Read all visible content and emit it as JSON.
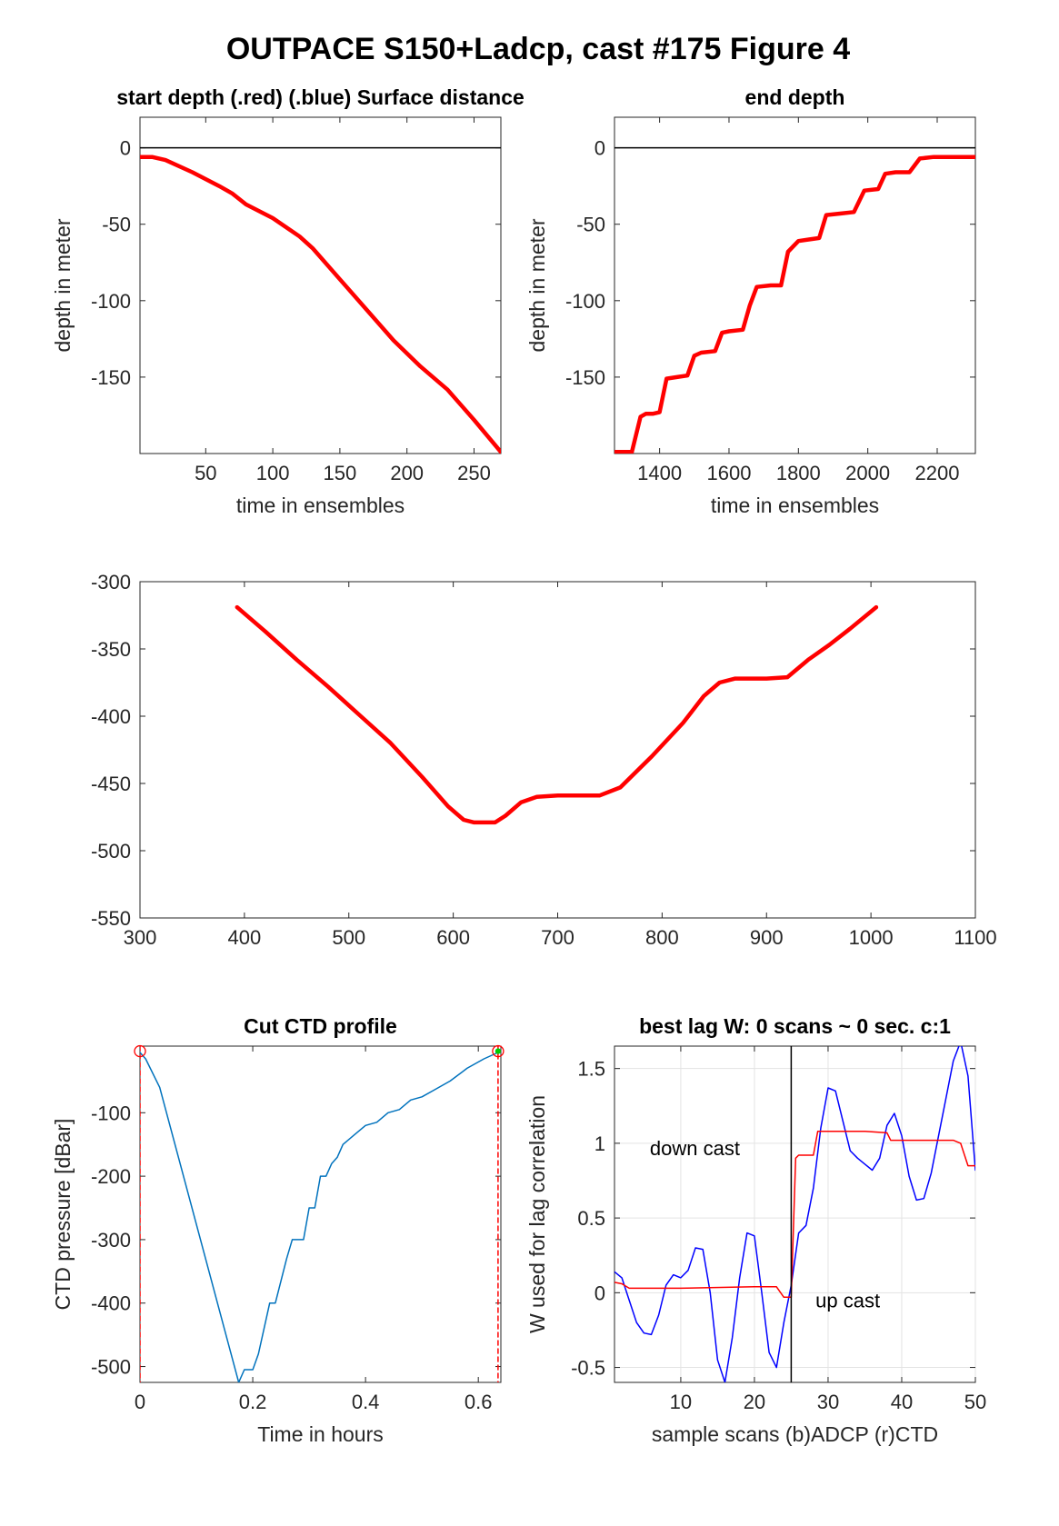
{
  "figure": {
    "title": "OUTPACE S150+Ladcp, cast #175   Figure 4"
  },
  "chart_data": [
    {
      "type": "line",
      "title": "start depth (.red) (.blue) Surface distance",
      "xlabel": "time in ensembles",
      "ylabel": "depth in meter",
      "xlim": [
        1,
        270
      ],
      "ylim": [
        -200,
        20
      ],
      "xticks": [
        50,
        100,
        150,
        200,
        250
      ],
      "yticks": [
        0,
        -50,
        -100,
        -150
      ],
      "grid": false,
      "series": [
        {
          "color": "#ff0000",
          "x": [
            1,
            10,
            20,
            40,
            60,
            70,
            80,
            100,
            120,
            130,
            150,
            170,
            190,
            210,
            230,
            250,
            270
          ],
          "y": [
            -6,
            -6,
            -8,
            -16,
            -25,
            -30,
            -37,
            -46,
            -58,
            -66,
            -86,
            -106,
            -126,
            -143,
            -158,
            -178,
            -199
          ]
        },
        {
          "color": "#000000",
          "x": [
            1,
            270
          ],
          "y": [
            0,
            0
          ]
        }
      ]
    },
    {
      "type": "line",
      "title": "end depth",
      "xlabel": "time in ensembles",
      "ylabel": "depth in meter",
      "xlim": [
        1270,
        2310
      ],
      "ylim": [
        -200,
        20
      ],
      "xticks": [
        1400,
        1600,
        1800,
        2000,
        2200
      ],
      "yticks": [
        0,
        -50,
        -100,
        -150
      ],
      "grid": false,
      "series": [
        {
          "color": "#ff0000",
          "x": [
            1270,
            1320,
            1345,
            1360,
            1380,
            1400,
            1420,
            1450,
            1480,
            1500,
            1520,
            1560,
            1580,
            1600,
            1640,
            1660,
            1680,
            1720,
            1750,
            1770,
            1800,
            1830,
            1860,
            1880,
            1920,
            1960,
            1990,
            2030,
            2050,
            2080,
            2120,
            2150,
            2190,
            2240,
            2310
          ],
          "y": [
            -199,
            -199,
            -176,
            -174,
            -174,
            -173,
            -151,
            -150,
            -149,
            -136,
            -134,
            -133,
            -121,
            -120,
            -119,
            -103,
            -91,
            -90,
            -90,
            -68,
            -61,
            -60,
            -59,
            -44,
            -43,
            -42,
            -28,
            -27,
            -17,
            -16,
            -16,
            -7,
            -6,
            -6,
            -6
          ]
        },
        {
          "color": "#000000",
          "x": [
            1270,
            2310
          ],
          "y": [
            0,
            0
          ]
        }
      ]
    },
    {
      "type": "line",
      "title": "",
      "xlabel": "",
      "ylabel": "",
      "xlim": [
        300,
        1100
      ],
      "ylim": [
        -550,
        -300
      ],
      "xticks": [
        300,
        400,
        500,
        600,
        700,
        800,
        900,
        1000,
        1100
      ],
      "yticks": [
        -300,
        -350,
        -400,
        -450,
        -500,
        -550
      ],
      "grid": false,
      "series": [
        {
          "color": "#ff0000",
          "x": [
            393,
            420,
            450,
            480,
            510,
            540,
            570,
            595,
            610,
            620,
            640,
            650,
            665,
            680,
            700,
            720,
            740,
            760,
            790,
            820,
            840,
            855,
            870,
            900,
            920,
            940,
            960,
            980,
            1005
          ],
          "y": [
            -319,
            -337,
            -358,
            -378,
            -399,
            -420,
            -445,
            -467,
            -477,
            -479,
            -479,
            -474,
            -464,
            -460,
            -459,
            -459,
            -459,
            -453,
            -430,
            -405,
            -385,
            -375,
            -372,
            -372,
            -371,
            -358,
            -347,
            -335,
            -319
          ]
        }
      ]
    },
    {
      "type": "line",
      "title": "Cut CTD profile",
      "xlabel": "Time in hours",
      "ylabel": "CTD pressure [dBar]",
      "xlim": [
        0,
        0.64
      ],
      "ylim": [
        -525,
        5
      ],
      "xticks": [
        0,
        0.2,
        0.4,
        0.6
      ],
      "xtick_labels": [
        "0",
        "0.2",
        "0.4",
        "0.6"
      ],
      "yticks": [
        -100,
        -200,
        -300,
        -400,
        -500
      ],
      "grid": false,
      "series": [
        {
          "color": "#0072bd",
          "x": [
            0,
            0.01,
            0.035,
            0.175,
            0.185,
            0.2,
            0.21,
            0.23,
            0.24,
            0.26,
            0.27,
            0.29,
            0.3,
            0.31,
            0.32,
            0.33,
            0.34,
            0.35,
            0.36,
            0.38,
            0.4,
            0.42,
            0.44,
            0.46,
            0.48,
            0.5,
            0.52,
            0.55,
            0.58,
            0.61,
            0.635
          ],
          "y": [
            -5,
            -15,
            -60,
            -525,
            -505,
            -505,
            -480,
            -400,
            -400,
            -330,
            -300,
            -300,
            -250,
            -250,
            -200,
            -200,
            -180,
            -170,
            -150,
            -135,
            -120,
            -115,
            -100,
            -95,
            -80,
            -75,
            -65,
            -50,
            -30,
            -15,
            -5
          ]
        },
        {
          "color": "#ff0000",
          "x": [
            0,
            0
          ],
          "y": [
            5,
            -525
          ]
        },
        {
          "color": "#ff0000",
          "x": [
            0.635,
            0.635
          ],
          "y": [
            5,
            -525
          ]
        }
      ],
      "markers": [
        {
          "x": 0,
          "y": -3,
          "color": "#ff0000"
        },
        {
          "x": 0.635,
          "y": -3,
          "color": "#ff0000"
        },
        {
          "x": 0.635,
          "y": -3,
          "color": "#00cc00"
        }
      ]
    },
    {
      "type": "line",
      "title": "best lag W: 0 scans ~ 0 sec.  c:1",
      "xlabel": "sample scans (b)ADCP (r)CTD",
      "ylabel": "W used for lag correlation",
      "xlim": [
        1,
        50
      ],
      "ylim": [
        -0.6,
        1.65
      ],
      "xticks": [
        10,
        20,
        30,
        40,
        50
      ],
      "yticks": [
        1.5,
        1,
        0.5,
        0,
        -0.5
      ],
      "grid": true,
      "annotations": [
        "down cast",
        "up cast"
      ],
      "series": [
        {
          "color": "#0000ff",
          "x": [
            1,
            2,
            3,
            4,
            5,
            6,
            7,
            8,
            9,
            10,
            11,
            12,
            13,
            14,
            15,
            16,
            17,
            18,
            19,
            20,
            21,
            22,
            23,
            24,
            25,
            26,
            27,
            28,
            29,
            30,
            31,
            32,
            33,
            34,
            35,
            36,
            37,
            38,
            39,
            40,
            41,
            42,
            43,
            44,
            45,
            46,
            47,
            48,
            49,
            50
          ],
          "y": [
            0.14,
            0.1,
            -0.05,
            -0.2,
            -0.27,
            -0.28,
            -0.15,
            0.05,
            0.12,
            0.1,
            0.15,
            0.3,
            0.29,
            0.0,
            -0.45,
            -0.6,
            -0.3,
            0.1,
            0.4,
            0.38,
            0.0,
            -0.4,
            -0.5,
            -0.2,
            0.05,
            0.4,
            0.45,
            0.7,
            1.1,
            1.37,
            1.35,
            1.15,
            0.95,
            0.9,
            0.86,
            0.82,
            0.9,
            1.12,
            1.2,
            1.05,
            0.78,
            0.62,
            0.63,
            0.8,
            1.05,
            1.3,
            1.55,
            1.68,
            1.45,
            0.82
          ]
        },
        {
          "color": "#ff0000",
          "x": [
            1,
            2,
            3,
            10,
            20,
            23,
            24,
            25,
            25.6,
            26,
            27,
            28,
            28.6,
            29,
            35,
            38,
            38.5,
            39,
            45,
            47,
            48,
            49,
            50
          ],
          "y": [
            0.07,
            0.06,
            0.03,
            0.03,
            0.04,
            0.04,
            -0.03,
            -0.03,
            0.9,
            0.92,
            0.92,
            0.92,
            1.08,
            1.08,
            1.08,
            1.07,
            1.02,
            1.02,
            1.02,
            1.02,
            1.0,
            0.85,
            0.85
          ]
        },
        {
          "color": "#000000",
          "x": [
            25,
            25
          ],
          "y": [
            -0.6,
            1.65
          ]
        }
      ]
    }
  ]
}
